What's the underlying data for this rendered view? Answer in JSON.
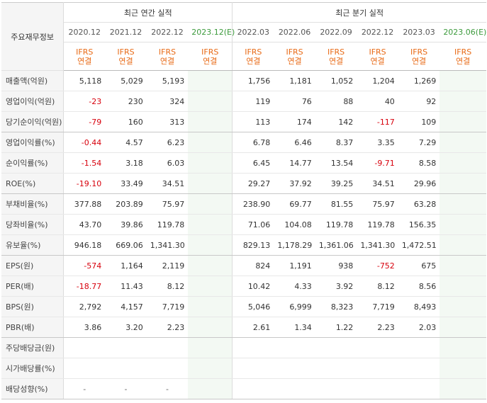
{
  "header": {
    "row_label": "주요재무정보",
    "annual_title": "최근 연간 실적",
    "quarter_title": "최근 분기 실적",
    "annual_periods": [
      "2020.12",
      "2021.12",
      "2022.12"
    ],
    "annual_estimate_period": "2023.12(E)",
    "quarter_periods": [
      "2022.03",
      "2022.06",
      "2022.09",
      "2022.12",
      "2023.03"
    ],
    "quarter_estimate_period": "2023.06(E)",
    "ifrs_line1": "IFRS",
    "ifrs_line2": "연결"
  },
  "colors": {
    "ifrs_text": "#e86a16",
    "estimate_text": "#3c9a3c",
    "negative_text": "#d8000c",
    "estimate_column_bg": "#f3f9f3",
    "label_bg": "#f5f5f5"
  },
  "rows": [
    {
      "label": "매출액(억원)",
      "annual": [
        "5,118",
        "5,029",
        "5,193",
        ""
      ],
      "quarter": [
        "1,756",
        "1,181",
        "1,052",
        "1,204",
        "1,269",
        ""
      ]
    },
    {
      "label": "영업이익(억원)",
      "annual": [
        "-23",
        "230",
        "324",
        ""
      ],
      "quarter": [
        "119",
        "76",
        "88",
        "40",
        "92",
        ""
      ]
    },
    {
      "label": "당기순이익(억원)",
      "annual": [
        "-79",
        "160",
        "313",
        ""
      ],
      "quarter": [
        "113",
        "174",
        "142",
        "-117",
        "109",
        ""
      ]
    },
    {
      "label": "영업이익률(%)",
      "annual": [
        "-0.44",
        "4.57",
        "6.23",
        ""
      ],
      "quarter": [
        "6.78",
        "6.46",
        "8.37",
        "3.35",
        "7.29",
        ""
      ]
    },
    {
      "label": "순이익률(%)",
      "annual": [
        "-1.54",
        "3.18",
        "6.03",
        ""
      ],
      "quarter": [
        "6.45",
        "14.77",
        "13.54",
        "-9.71",
        "8.58",
        ""
      ]
    },
    {
      "label": "ROE(%)",
      "annual": [
        "-19.10",
        "33.49",
        "34.51",
        ""
      ],
      "quarter": [
        "29.27",
        "37.92",
        "39.25",
        "34.51",
        "29.96",
        ""
      ]
    },
    {
      "label": "부채비율(%)",
      "annual": [
        "377.88",
        "203.89",
        "75.97",
        ""
      ],
      "quarter": [
        "238.90",
        "69.77",
        "81.55",
        "75.97",
        "63.28",
        ""
      ]
    },
    {
      "label": "당좌비율(%)",
      "annual": [
        "43.70",
        "39.86",
        "119.78",
        ""
      ],
      "quarter": [
        "71.06",
        "104.08",
        "119.78",
        "119.78",
        "156.35",
        ""
      ]
    },
    {
      "label": "유보율(%)",
      "annual": [
        "946.18",
        "669.06",
        "1,341.30",
        ""
      ],
      "quarter": [
        "829.13",
        "1,178.29",
        "1,361.06",
        "1,341.30",
        "1,472.51",
        ""
      ]
    },
    {
      "label": "EPS(원)",
      "annual": [
        "-574",
        "1,164",
        "2,119",
        ""
      ],
      "quarter": [
        "824",
        "1,191",
        "938",
        "-752",
        "675",
        ""
      ]
    },
    {
      "label": "PER(배)",
      "annual": [
        "-18.77",
        "11.43",
        "8.12",
        ""
      ],
      "quarter": [
        "10.42",
        "4.33",
        "3.92",
        "8.12",
        "8.56",
        ""
      ]
    },
    {
      "label": "BPS(원)",
      "annual": [
        "2,792",
        "4,157",
        "7,719",
        ""
      ],
      "quarter": [
        "5,046",
        "6,999",
        "8,323",
        "7,719",
        "8,493",
        ""
      ]
    },
    {
      "label": "PBR(배)",
      "annual": [
        "3.86",
        "3.20",
        "2.23",
        ""
      ],
      "quarter": [
        "2.61",
        "1.34",
        "1.22",
        "2.23",
        "2.03",
        ""
      ]
    },
    {
      "label": "주당배당금(원)",
      "annual": [
        "",
        "",
        "",
        ""
      ],
      "quarter": [
        "",
        "",
        "",
        "",
        "",
        ""
      ]
    },
    {
      "label": "시가배당률(%)",
      "annual": [
        "",
        "",
        "",
        ""
      ],
      "quarter": [
        "",
        "",
        "",
        "",
        "",
        ""
      ]
    },
    {
      "label": "배당성향(%)",
      "annual": [
        "-",
        "-",
        "-",
        ""
      ],
      "quarter": [
        "",
        "",
        "",
        "",
        "",
        ""
      ]
    }
  ]
}
